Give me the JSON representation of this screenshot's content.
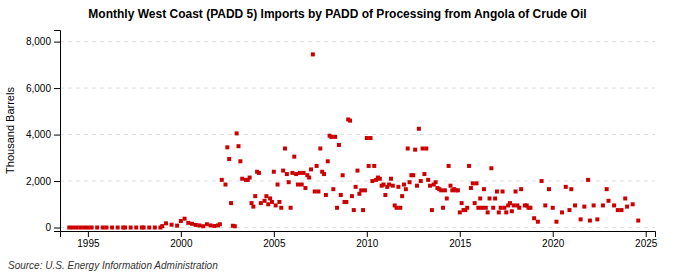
{
  "chart_data": {
    "type": "scatter",
    "title": "Monthly West Coast (PADD 5) Imports by PADD of Processing from Angola of Crude Oil",
    "ylabel": "Thousand Barrels",
    "annotations": [
      "Source: U.S. Energy Information Administration"
    ],
    "color": "#cc0000",
    "marker": "square",
    "grid": true,
    "xlim": [
      1993.5,
      2025.5
    ],
    "ylim": [
      -150,
      8500
    ],
    "xticks": [
      1995,
      2000,
      2005,
      2010,
      2015,
      2020,
      2025
    ],
    "yticks": [
      0,
      {
        "value": 2000,
        "label": "2,000"
      },
      {
        "value": 4000,
        "label": "4,000"
      },
      {
        "value": 6000,
        "label": "6,000"
      },
      {
        "value": 8000,
        "label": "8,000"
      }
    ],
    "x": [
      1994.0,
      1994.2,
      1994.4,
      1994.6,
      1994.8,
      1995.0,
      1995.2,
      1995.5,
      1995.8,
      1996.0,
      1996.3,
      1996.6,
      1996.9,
      1997.0,
      1997.3,
      1997.6,
      1997.9,
      1998.0,
      1998.3,
      1998.6,
      1998.9,
      1999.0,
      1999.2,
      1999.5,
      1999.8,
      2000.0,
      2000.2,
      2000.4,
      2000.6,
      2000.8,
      2001.0,
      2001.2,
      2001.4,
      2001.6,
      2001.8,
      2002.0,
      2002.1,
      2002.2,
      2002.4,
      2002.5,
      2002.6,
      2002.7,
      2002.8,
      2002.9,
      2003.0,
      2003.1,
      2003.2,
      2003.3,
      2003.5,
      2003.6,
      2003.7,
      2003.8,
      2003.9,
      2004.0,
      2004.1,
      2004.2,
      2004.3,
      2004.5,
      2004.6,
      2004.7,
      2004.8,
      2004.9,
      2005.0,
      2005.1,
      2005.2,
      2005.3,
      2005.4,
      2005.5,
      2005.6,
      2005.7,
      2005.8,
      2005.9,
      2006.0,
      2006.1,
      2006.2,
      2006.3,
      2006.4,
      2006.5,
      2006.6,
      2006.7,
      2006.8,
      2006.9,
      2007.0,
      2007.1,
      2007.2,
      2007.3,
      2007.4,
      2007.5,
      2007.6,
      2007.7,
      2007.8,
      2007.9,
      2008.0,
      2008.1,
      2008.2,
      2008.3,
      2008.4,
      2008.5,
      2008.6,
      2008.7,
      2008.8,
      2008.9,
      2009.0,
      2009.1,
      2009.2,
      2009.3,
      2009.4,
      2009.5,
      2009.6,
      2009.7,
      2009.8,
      2009.9,
      2010.0,
      2010.1,
      2010.2,
      2010.3,
      2010.4,
      2010.5,
      2010.6,
      2010.7,
      2010.8,
      2010.9,
      2011.0,
      2011.1,
      2011.2,
      2011.3,
      2011.4,
      2011.5,
      2011.6,
      2011.7,
      2011.8,
      2011.9,
      2012.0,
      2012.1,
      2012.2,
      2012.3,
      2012.4,
      2012.5,
      2012.6,
      2012.7,
      2012.8,
      2012.9,
      2013.0,
      2013.1,
      2013.2,
      2013.3,
      2013.4,
      2013.5,
      2013.6,
      2013.7,
      2013.8,
      2013.9,
      2014.0,
      2014.1,
      2014.2,
      2014.3,
      2014.4,
      2014.5,
      2014.6,
      2014.7,
      2014.8,
      2014.9,
      2015.0,
      2015.1,
      2015.2,
      2015.3,
      2015.4,
      2015.5,
      2015.6,
      2015.7,
      2015.8,
      2015.9,
      2016.0,
      2016.1,
      2016.2,
      2016.3,
      2016.4,
      2016.5,
      2016.6,
      2016.7,
      2016.8,
      2016.9,
      2017.0,
      2017.1,
      2017.2,
      2017.3,
      2017.4,
      2017.5,
      2017.6,
      2017.7,
      2017.8,
      2017.9,
      2018.0,
      2018.1,
      2018.2,
      2018.3,
      2018.5,
      2018.6,
      2018.7,
      2018.8,
      2019.0,
      2019.2,
      2019.4,
      2019.6,
      2019.8,
      2020.0,
      2020.2,
      2020.5,
      2020.7,
      2020.9,
      2021.0,
      2021.2,
      2021.5,
      2021.7,
      2021.9,
      2022.0,
      2022.2,
      2022.4,
      2022.7,
      2022.9,
      2023.0,
      2023.3,
      2023.5,
      2023.7,
      2023.9,
      2024.0,
      2024.3,
      2024.6
    ],
    "values": [
      0,
      0,
      0,
      0,
      0,
      0,
      0,
      0,
      0,
      0,
      0,
      0,
      0,
      0,
      0,
      0,
      0,
      0,
      0,
      0,
      0,
      60,
      180,
      120,
      80,
      280,
      380,
      200,
      160,
      110,
      90,
      55,
      140,
      90,
      65,
      90,
      140,
      2050,
      1850,
      3450,
      2950,
      1050,
      75,
      55,
      4050,
      3500,
      2850,
      2100,
      2050,
      2050,
      2150,
      1050,
      900,
      1350,
      2400,
      2350,
      1050,
      1150,
      1350,
      1000,
      1250,
      1100,
      2400,
      950,
      1850,
      1100,
      850,
      2450,
      3400,
      2300,
      1950,
      850,
      2350,
      3050,
      2300,
      1850,
      2350,
      1850,
      2350,
      1700,
      2250,
      2150,
      2500,
      7450,
      1550,
      2650,
      1550,
      3400,
      2400,
      2300,
      1400,
      2850,
      3950,
      3900,
      1650,
      3900,
      850,
      3550,
      1400,
      2250,
      1100,
      1100,
      4650,
      4600,
      1350,
      750,
      1750,
      2450,
      1450,
      1600,
      750,
      1600,
      3850,
      2650,
      3850,
      2000,
      2650,
      2050,
      2150,
      2100,
      1800,
      1850,
      1400,
      1750,
      1850,
      2100,
      1800,
      950,
      850,
      1750,
      850,
      1350,
      1850,
      1650,
      3400,
      1950,
      2250,
      2250,
      3350,
      1800,
      4250,
      2000,
      3400,
      2300,
      3400,
      2050,
      1800,
      750,
      1850,
      1950,
      1700,
      1650,
      1600,
      850,
      1600,
      1250,
      2650,
      1800,
      1600,
      1650,
      1600,
      1600,
      650,
      1050,
      750,
      750,
      850,
      2650,
      1700,
      1900,
      1050,
      1900,
      850,
      1250,
      850,
      1650,
      850,
      650,
      1250,
      2550,
      850,
      1250,
      1550,
      650,
      850,
      1550,
      850,
      650,
      950,
      1050,
      700,
      950,
      1550,
      950,
      850,
      1650,
      950,
      950,
      850,
      850,
      400,
      250,
      2000,
      950,
      1650,
      850,
      250,
      650,
      1750,
      750,
      1650,
      950,
      350,
      900,
      2050,
      300,
      950,
      350,
      950,
      1650,
      1150,
      950,
      750,
      750,
      1250,
      900,
      1000,
      300
    ]
  }
}
